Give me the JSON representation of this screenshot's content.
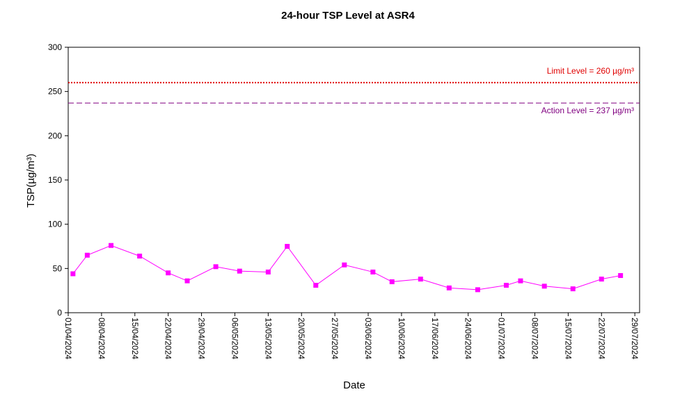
{
  "chart_data": {
    "type": "line",
    "title": "24-hour TSP Level at ASR4",
    "xlabel": "Date",
    "ylabel": "TSP(µg/m³)",
    "ylim": [
      0,
      300
    ],
    "yticks": [
      0,
      50,
      100,
      150,
      200,
      250,
      300
    ],
    "xlim": [
      "2024-04-01",
      "2024-07-30"
    ],
    "xtick_labels": [
      "01/04/2024",
      "08/04/2024",
      "15/04/2024",
      "22/04/2024",
      "29/04/2024",
      "06/05/2024",
      "13/05/2024",
      "20/05/2024",
      "27/05/2024",
      "03/06/2024",
      "10/06/2024",
      "17/06/2024",
      "24/06/2024",
      "01/07/2024",
      "08/07/2024",
      "15/07/2024",
      "22/07/2024",
      "29/07/2024"
    ],
    "grid": false,
    "legend": "none",
    "series": [
      {
        "color": "#ff00ff",
        "marker": "square",
        "points": [
          {
            "x": "2024-04-02",
            "y": 44
          },
          {
            "x": "2024-04-05",
            "y": 65
          },
          {
            "x": "2024-04-10",
            "y": 76
          },
          {
            "x": "2024-04-16",
            "y": 64
          },
          {
            "x": "2024-04-22",
            "y": 45
          },
          {
            "x": "2024-04-26",
            "y": 36
          },
          {
            "x": "2024-05-02",
            "y": 52
          },
          {
            "x": "2024-05-07",
            "y": 47
          },
          {
            "x": "2024-05-13",
            "y": 46
          },
          {
            "x": "2024-05-17",
            "y": 75
          },
          {
            "x": "2024-05-23",
            "y": 31
          },
          {
            "x": "2024-05-29",
            "y": 54
          },
          {
            "x": "2024-06-04",
            "y": 46
          },
          {
            "x": "2024-06-08",
            "y": 35
          },
          {
            "x": "2024-06-14",
            "y": 38
          },
          {
            "x": "2024-06-20",
            "y": 28
          },
          {
            "x": "2024-06-26",
            "y": 26
          },
          {
            "x": "2024-07-02",
            "y": 31
          },
          {
            "x": "2024-07-05",
            "y": 36
          },
          {
            "x": "2024-07-10",
            "y": 30
          },
          {
            "x": "2024-07-16",
            "y": 27
          },
          {
            "x": "2024-07-22",
            "y": 38
          },
          {
            "x": "2024-07-26",
            "y": 42
          }
        ]
      }
    ],
    "reference_lines": [
      {
        "label": "Limit Level  = 260 µg/m³",
        "y": 260,
        "color": "#e00000",
        "style": "dotted",
        "label_position": "above-right"
      },
      {
        "label": "Action Level  = 237 µg/m³",
        "y": 237,
        "color": "#800080",
        "style": "dashed",
        "label_position": "below-right"
      }
    ]
  }
}
